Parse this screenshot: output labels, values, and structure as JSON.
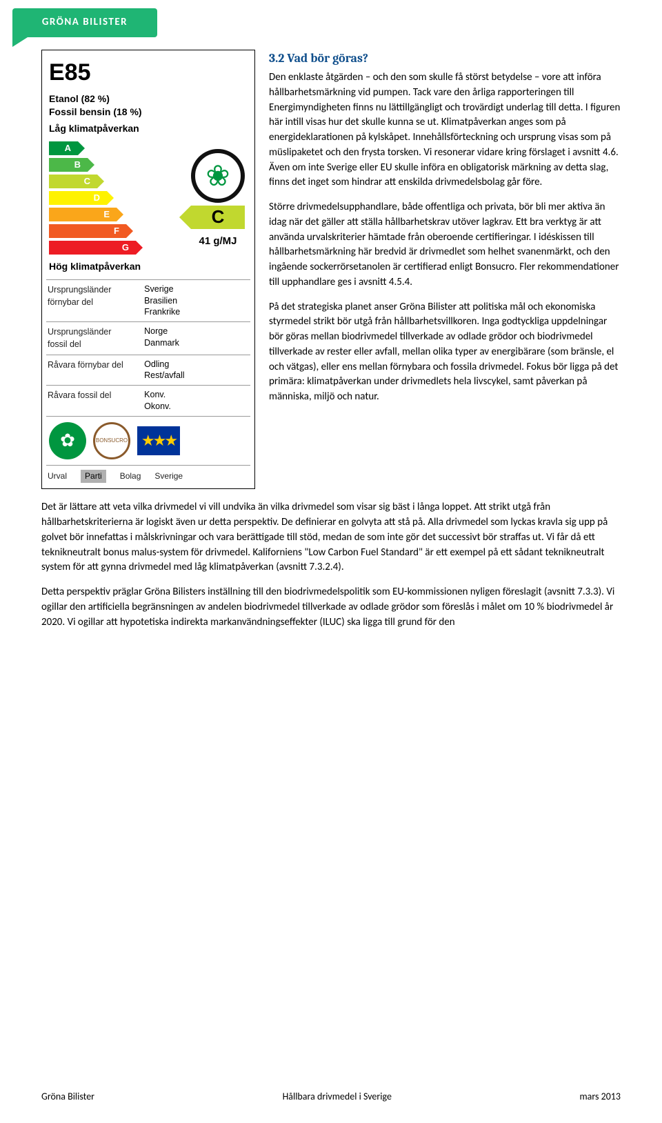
{
  "logo": {
    "text": "GRÖNA BILISTER"
  },
  "label": {
    "title": "E85",
    "comp_1": "Etanol (82 %)",
    "comp_2": "Fossil bensin (18 %)",
    "low_impact": "Låg klimatpåverkan",
    "high_impact": "Hög klimatpåverkan",
    "grades": [
      "A",
      "B",
      "C",
      "D",
      "E",
      "F",
      "G"
    ],
    "selected_grade": "C",
    "energy_value": "41 g/MJ",
    "origin_rows": [
      {
        "key": "Ursprungsländer\nförnybar del",
        "vals": [
          "Sverige",
          "Brasilien",
          "Frankrike"
        ]
      },
      {
        "key": "Ursprungsländer\nfossil del",
        "vals": [
          "Norge",
          "Danmark"
        ]
      },
      {
        "key": "Råvara förnybar del",
        "vals": [
          "Odling",
          "Rest/avfall"
        ]
      },
      {
        "key": "Råvara fossil del",
        "vals": [
          "Konv.",
          "Okonv."
        ]
      }
    ],
    "urval_label": "Urval",
    "urval_opts": [
      "Parti",
      "Bolag",
      "Sverige"
    ],
    "urval_selected": "Parti"
  },
  "text": {
    "heading": "3.2 Vad bör göras?",
    "p1": "Den enklaste åtgärden – och den som skulle få störst betydelse – vore att införa hållbarhetsmärkning vid pumpen. Tack vare den årliga rapporteringen till Energimyndigheten finns nu lättillgängligt och trovärdigt underlag till detta. I figuren här intill visas hur det skulle kunna se ut. Klimatpåverkan anges som på energideklarationen på kylskåpet. Innehållsförteckning och ursprung visas som på müslipaketet och den frysta torsken. Vi resonerar vidare kring förslaget i avsnitt 4.6. Även om inte Sverige eller EU skulle införa en obligatorisk märkning av detta slag, finns det inget som hindrar att enskilda drivmedelsbolag går före.",
    "p2": "Större drivmedelsupphandlare, både offentliga och privata, bör bli mer aktiva än idag när det gäller att ställa hållbarhetskrav utöver lagkrav. Ett bra verktyg är att använda urvalskriterier hämtade från oberoende certifieringar. I idéskissen till hållbarhetsmärkning här bredvid är drivmedlet som helhet svanenmärkt, och den ingående sockerrörsetanolen är certifierad enligt Bonsucro. Fler rekommendationer till upphandlare ges i avsnitt 4.5.4.",
    "p3": "På det strategiska planet anser Gröna Bilister att politiska mål och ekonomiska styrmedel strikt bör utgå från hållbarhetsvillkoren. Inga godtyckliga uppdelningar bör göras mellan biodrivmedel tillverkade av odlade grödor och biodrivmedel tillverkade av rester eller avfall, mellan olika typer av energibärare (som bränsle, el och vätgas), eller ens mellan förnybara och fossila drivmedel. Fokus bör ligga på det primära: klimatpåverkan under drivmedlets hela livscykel, samt påverkan på människa, miljö och natur.",
    "p4": "Det är lättare att veta vilka drivmedel vi vill undvika än vilka drivmedel som visar sig bäst i långa loppet. Att strikt utgå från hållbarhetskriterierna är logiskt även ur detta perspektiv. De definierar en golvyta att stå på. Alla drivmedel som lyckas kravla sig upp på golvet bör innefattas i målskrivningar och vara berättigade till stöd, medan de som inte gör det successivt bör straffas ut. Vi får då ett teknikneutralt bonus malus-system för drivmedel. Kaliforniens \"Low Carbon Fuel Standard\" är ett exempel på ett sådant teknikneutralt system för att gynna drivmedel med låg klimatpåverkan (avsnitt 7.3.2.4).",
    "p5": "Detta perspektiv präglar Gröna Bilisters inställning till den biodrivmedelspolitik som EU-kommissionen nyligen föreslagit (avsnitt 7.3.3). Vi ogillar den artificiella begränsningen av andelen biodrivmedel tillverkade av odlade grödor som föreslås i målet om 10 % biodrivmedel år 2020. Vi ogillar att hypotetiska indirekta markanvändningseffekter (ILUC) ska ligga till grund för den"
  },
  "footer": {
    "left": "Gröna Bilister",
    "center": "Hållbara drivmedel i Sverige",
    "right": "mars 2013"
  },
  "colors": {
    "heading": "#104f8c",
    "logo_bg": "#1fb574",
    "grade_colors": [
      "#00963f",
      "#4cb848",
      "#c1d82f",
      "#fef200",
      "#faa61a",
      "#f15a22",
      "#ed1c24"
    ],
    "eu_bg": "#003399",
    "eu_stars": "#ffcc00"
  }
}
